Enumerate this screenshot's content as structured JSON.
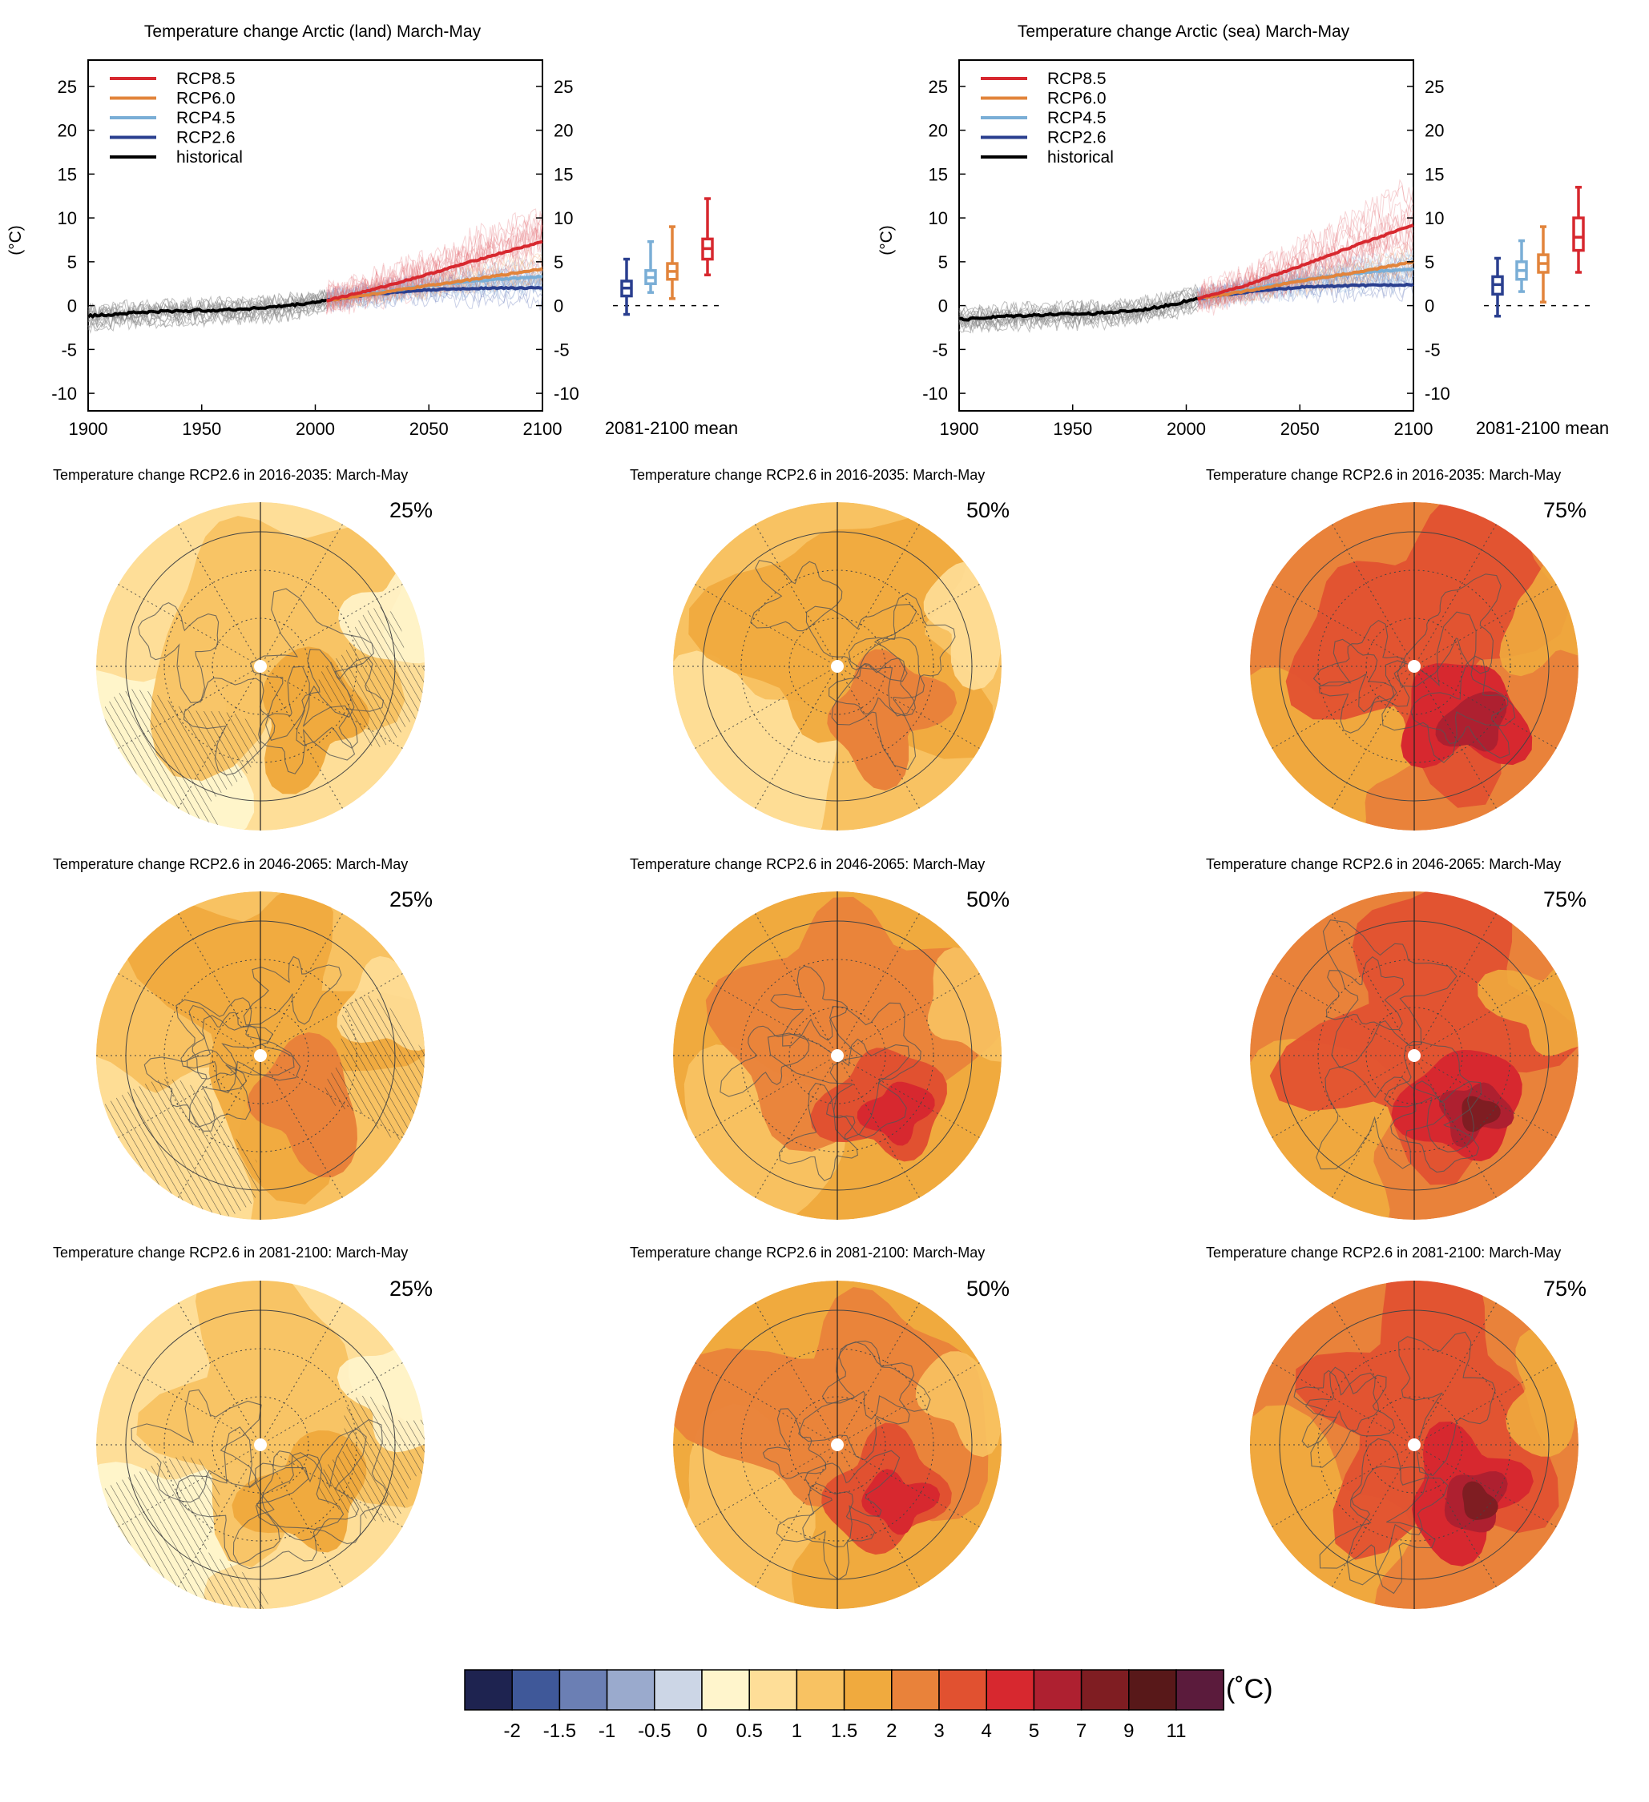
{
  "chart_data": [
    {
      "type": "line",
      "title": "Temperature change Arctic (land) March-May",
      "ylabel": "(°C)",
      "xlim": [
        1900,
        2100
      ],
      "ylim": [
        -12,
        28
      ],
      "x_ticks": [
        "1900",
        "1950",
        "2000",
        "2050",
        "2100"
      ],
      "y_ticks": [
        "-10",
        "-5",
        "0",
        "5",
        "10",
        "15",
        "20",
        "25"
      ],
      "legend": [
        "RCP8.5",
        "RCP6.0",
        "RCP4.5",
        "RCP2.6",
        "historical"
      ],
      "legend_position": "top-left",
      "series": [
        {
          "name": "historical",
          "color": "#000000",
          "x": [
            1900,
            1920,
            1940,
            1960,
            1980,
            1995,
            2005
          ],
          "values": [
            -1.2,
            -0.8,
            -0.6,
            -0.5,
            -0.2,
            0.2,
            0.6
          ]
        },
        {
          "name": "RCP2.6",
          "color": "#2a3f8f",
          "x": [
            2005,
            2025,
            2050,
            2075,
            2100
          ],
          "values": [
            0.6,
            1.3,
            1.8,
            2.0,
            2.0
          ]
        },
        {
          "name": "RCP4.5",
          "color": "#7aaed6",
          "x": [
            2005,
            2025,
            2050,
            2075,
            2100
          ],
          "values": [
            0.6,
            1.4,
            2.3,
            2.9,
            3.3
          ]
        },
        {
          "name": "RCP6.0",
          "color": "#e2843b",
          "x": [
            2005,
            2025,
            2050,
            2075,
            2100
          ],
          "values": [
            0.6,
            1.3,
            2.3,
            3.2,
            4.2
          ]
        },
        {
          "name": "RCP8.5",
          "color": "#d7282f",
          "x": [
            2005,
            2025,
            2050,
            2075,
            2100
          ],
          "values": [
            0.6,
            1.8,
            3.6,
            5.5,
            7.3
          ]
        }
      ],
      "box_label": "2081-2100 mean",
      "boxes": [
        {
          "name": "RCP2.6",
          "color": "#2a3f8f",
          "min": -1,
          "q1": 1.1,
          "median": 2,
          "q3": 2.8,
          "max": 5.3
        },
        {
          "name": "RCP4.5",
          "color": "#7aaed6",
          "min": 1.5,
          "q1": 2.5,
          "median": 3.2,
          "q3": 4.0,
          "max": 7.3
        },
        {
          "name": "RCP6.0",
          "color": "#e2843b",
          "min": 0.8,
          "q1": 3.0,
          "median": 3.9,
          "q3": 4.8,
          "max": 9.0
        },
        {
          "name": "RCP8.5",
          "color": "#d7282f",
          "min": 3.5,
          "q1": 5.3,
          "median": 6.5,
          "q3": 7.6,
          "max": 12.2
        }
      ]
    },
    {
      "type": "line",
      "title": "Temperature change Arctic (sea) March-May",
      "ylabel": "(°C)",
      "xlim": [
        1900,
        2100
      ],
      "ylim": [
        -12,
        28
      ],
      "x_ticks": [
        "1900",
        "1950",
        "2000",
        "2050",
        "2100"
      ],
      "y_ticks": [
        "-10",
        "-5",
        "0",
        "5",
        "10",
        "15",
        "20",
        "25"
      ],
      "legend": [
        "RCP8.5",
        "RCP6.0",
        "RCP4.5",
        "RCP2.6",
        "historical"
      ],
      "legend_position": "top-left",
      "series": [
        {
          "name": "historical",
          "color": "#000000",
          "x": [
            1900,
            1920,
            1940,
            1960,
            1980,
            1995,
            2005
          ],
          "values": [
            -1.6,
            -1.2,
            -1.0,
            -0.9,
            -0.5,
            0.2,
            0.8
          ]
        },
        {
          "name": "RCP2.6",
          "color": "#2a3f8f",
          "x": [
            2005,
            2025,
            2050,
            2075,
            2100
          ],
          "values": [
            0.8,
            1.5,
            2.1,
            2.3,
            2.4
          ]
        },
        {
          "name": "RCP4.5",
          "color": "#7aaed6",
          "x": [
            2005,
            2025,
            2050,
            2075,
            2100
          ],
          "values": [
            0.8,
            1.7,
            2.9,
            3.7,
            4.2
          ]
        },
        {
          "name": "RCP6.0",
          "color": "#e2843b",
          "x": [
            2005,
            2025,
            2050,
            2075,
            2100
          ],
          "values": [
            0.8,
            1.6,
            2.8,
            3.8,
            5.0
          ]
        },
        {
          "name": "RCP8.5",
          "color": "#d7282f",
          "x": [
            2005,
            2025,
            2050,
            2075,
            2100
          ],
          "values": [
            0.8,
            2.2,
            4.5,
            6.9,
            9.2
          ]
        }
      ],
      "box_label": "2081-2100 mean",
      "boxes": [
        {
          "name": "RCP2.6",
          "color": "#2a3f8f",
          "min": -1.2,
          "q1": 1.3,
          "median": 2.4,
          "q3": 3.3,
          "max": 5.4
        },
        {
          "name": "RCP4.5",
          "color": "#7aaed6",
          "min": 1.6,
          "q1": 3.0,
          "median": 4.0,
          "q3": 5.0,
          "max": 7.4
        },
        {
          "name": "RCP6.0",
          "color": "#e2843b",
          "min": 0.4,
          "q1": 3.8,
          "median": 4.8,
          "q3": 5.8,
          "max": 9.0
        },
        {
          "name": "RCP8.5",
          "color": "#d7282f",
          "min": 3.8,
          "q1": 6.3,
          "median": 7.8,
          "q3": 10.0,
          "max": 13.5
        }
      ]
    },
    {
      "type": "heatmap",
      "maps": [
        {
          "title": "Temperature change RCP2.6 in 2016-2035: March-May",
          "percentile": "25%",
          "base_level": 0.5,
          "hatched": true
        },
        {
          "title": "Temperature change RCP2.6 in 2016-2035: March-May",
          "percentile": "50%",
          "base_level": 1.0,
          "hatched": false
        },
        {
          "title": "Temperature change RCP2.6 in 2016-2035: March-May",
          "percentile": "75%",
          "base_level": 2.0,
          "hatched": false
        },
        {
          "title": "Temperature change RCP2.6 in 2046-2065: March-May",
          "percentile": "25%",
          "base_level": 1.0,
          "hatched": true
        },
        {
          "title": "Temperature change RCP2.6 in 2046-2065: March-May",
          "percentile": "50%",
          "base_level": 1.5,
          "hatched": false
        },
        {
          "title": "Temperature change RCP2.6 in 2046-2065: March-May",
          "percentile": "75%",
          "base_level": 2.0,
          "hatched": false
        },
        {
          "title": "Temperature change RCP2.6 in 2081-2100: March-May",
          "percentile": "25%",
          "base_level": 0.5,
          "hatched": true
        },
        {
          "title": "Temperature change RCP2.6 in 2081-2100: March-May",
          "percentile": "50%",
          "base_level": 1.5,
          "hatched": false
        },
        {
          "title": "Temperature change RCP2.6 in 2081-2100: March-May",
          "percentile": "75%",
          "base_level": 2.0,
          "hatched": false
        }
      ],
      "colorbar": {
        "unit": "(˚C)",
        "colors": [
          "#1e2350",
          "#3f5899",
          "#6b7fb4",
          "#9aaacd",
          "#ccd6e6",
          "#fff5cc",
          "#fede98",
          "#f8c262",
          "#f0aa3e",
          "#e9823a",
          "#e15130",
          "#d7282f",
          "#ae2030",
          "#7f1d22",
          "#581819",
          "#5b1b3c"
        ],
        "tick_labels": [
          "-2",
          "-1.5",
          "-1",
          "-0.5",
          "0",
          "0.5",
          "1",
          "1.5",
          "2",
          "3",
          "4",
          "5",
          "7",
          "9",
          "11"
        ]
      }
    }
  ]
}
